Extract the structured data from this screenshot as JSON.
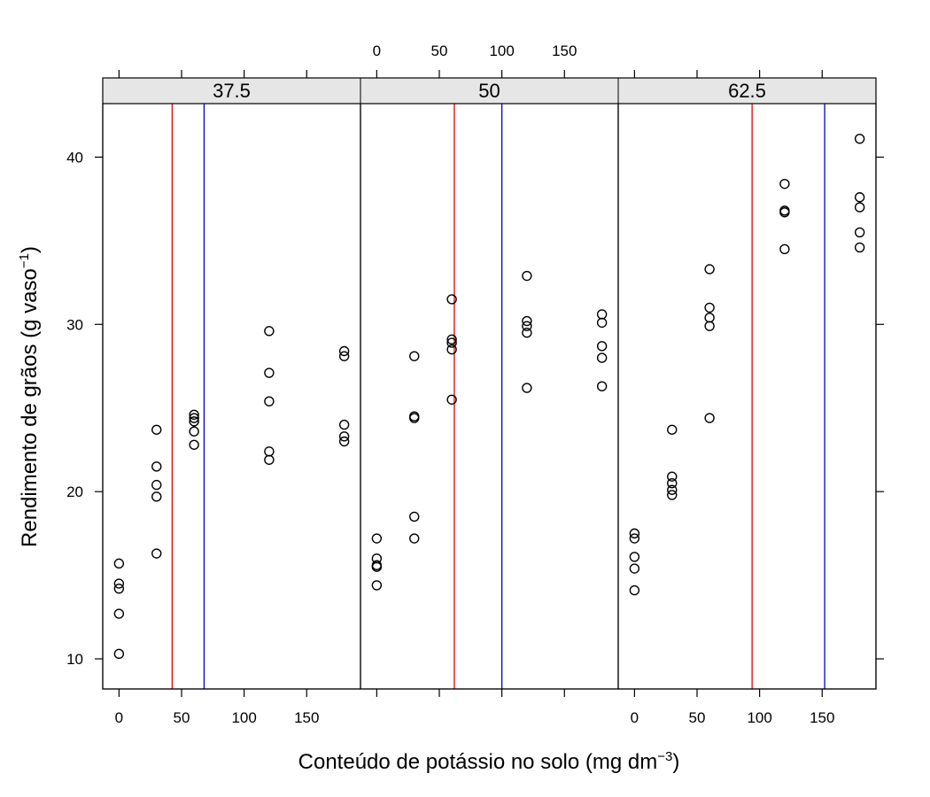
{
  "chart_data": {
    "type": "scatter",
    "xlabel": "Conteúdo de potássio no solo (mg dm",
    "xlabel_sup": "−3",
    "xlabel_end": ")",
    "ylabel": "Rendimento de grãos (g vaso",
    "ylabel_sup": "−1",
    "ylabel_end": ")",
    "xlim": [
      -13,
      193
    ],
    "ylim": [
      8.2,
      43.2
    ],
    "x_ticks": [
      0,
      50,
      100,
      150
    ],
    "y_ticks": [
      10,
      20,
      30,
      40
    ],
    "colors": {
      "line_red": "#e00000",
      "line_blue": "#0000d0",
      "strip_bg": "#e6e6e6",
      "points": "#000000"
    },
    "panels": [
      {
        "strip": "37.5",
        "vlines": {
          "red": 42.5,
          "blue": 68
        },
        "points": [
          [
            0,
            15.7
          ],
          [
            0,
            14.5
          ],
          [
            0,
            14.2
          ],
          [
            0,
            12.7
          ],
          [
            0,
            10.3
          ],
          [
            30,
            23.7
          ],
          [
            30,
            21.5
          ],
          [
            30,
            20.4
          ],
          [
            30,
            19.7
          ],
          [
            30,
            16.3
          ],
          [
            60,
            24.6
          ],
          [
            60,
            24.4
          ],
          [
            60,
            24.2
          ],
          [
            60,
            23.6
          ],
          [
            60,
            22.8
          ],
          [
            120,
            29.6
          ],
          [
            120,
            27.1
          ],
          [
            120,
            25.4
          ],
          [
            120,
            22.4
          ],
          [
            120,
            21.9
          ],
          [
            180,
            28.4
          ],
          [
            180,
            28.1
          ],
          [
            180,
            24.0
          ],
          [
            180,
            23.3
          ],
          [
            180,
            23.0
          ]
        ]
      },
      {
        "strip": "50",
        "vlines": {
          "red": 62,
          "blue": 100
        },
        "points": [
          [
            0,
            17.2
          ],
          [
            0,
            16.0
          ],
          [
            0,
            15.6
          ],
          [
            0,
            15.5
          ],
          [
            0,
            14.4
          ],
          [
            30,
            28.1
          ],
          [
            30,
            24.5
          ],
          [
            30,
            24.4
          ],
          [
            30,
            18.5
          ],
          [
            30,
            17.2
          ],
          [
            60,
            31.5
          ],
          [
            60,
            29.1
          ],
          [
            60,
            28.9
          ],
          [
            60,
            28.5
          ],
          [
            60,
            25.5
          ],
          [
            120,
            32.9
          ],
          [
            120,
            30.2
          ],
          [
            120,
            29.9
          ],
          [
            120,
            29.5
          ],
          [
            120,
            26.2
          ],
          [
            180,
            30.6
          ],
          [
            180,
            30.1
          ],
          [
            180,
            28.7
          ],
          [
            180,
            28.0
          ],
          [
            180,
            26.3
          ]
        ]
      },
      {
        "strip": "62.5",
        "vlines": {
          "red": 94,
          "blue": 152
        },
        "points": [
          [
            0,
            17.5
          ],
          [
            0,
            17.2
          ],
          [
            0,
            16.1
          ],
          [
            0,
            15.4
          ],
          [
            0,
            14.1
          ],
          [
            30,
            23.7
          ],
          [
            30,
            20.9
          ],
          [
            30,
            20.5
          ],
          [
            30,
            20.1
          ],
          [
            30,
            19.8
          ],
          [
            60,
            33.3
          ],
          [
            60,
            31.0
          ],
          [
            60,
            30.4
          ],
          [
            60,
            29.9
          ],
          [
            60,
            24.4
          ],
          [
            120,
            38.4
          ],
          [
            120,
            36.8
          ],
          [
            120,
            36.7
          ],
          [
            120,
            34.5
          ],
          [
            180,
            41.1
          ],
          [
            180,
            37.6
          ],
          [
            180,
            37.0
          ],
          [
            180,
            35.5
          ],
          [
            180,
            34.6
          ]
        ]
      }
    ]
  }
}
